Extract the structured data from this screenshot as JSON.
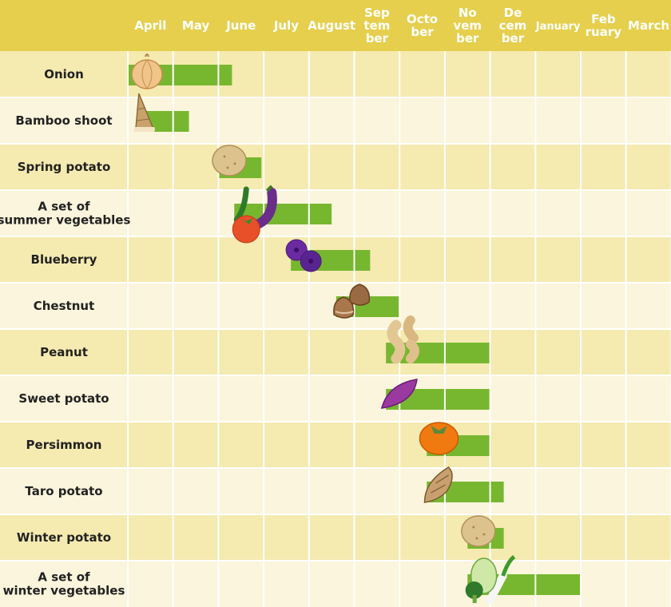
{
  "chart_data": {
    "type": "gantt",
    "title": "",
    "months": [
      "April",
      "May",
      "June",
      "July",
      "August",
      "September",
      "October",
      "November",
      "December",
      "January",
      "February",
      "March"
    ],
    "month_header_lines": [
      [
        "April"
      ],
      [
        "May"
      ],
      [
        "June"
      ],
      [
        "July"
      ],
      [
        "August"
      ],
      [
        "Sep",
        "tem",
        "ber"
      ],
      [
        "Octo",
        "ber"
      ],
      [
        "No",
        "vem",
        "ber"
      ],
      [
        "De",
        "cem",
        "ber"
      ],
      [
        "January"
      ],
      [
        "Feb",
        "ruary"
      ],
      [
        "March"
      ]
    ],
    "rows": [
      {
        "label": [
          "Onion"
        ],
        "start": 0.0,
        "end": 2.3,
        "icon": "onion-icon"
      },
      {
        "label": [
          "Bamboo shoot"
        ],
        "start": 0.35,
        "end": 1.35,
        "icon": "bamboo-shoot-icon"
      },
      {
        "label": [
          "Spring potato"
        ],
        "start": 2.0,
        "end": 2.95,
        "icon": "potato-icon"
      },
      {
        "label": [
          "A set of",
          "summer vegetables"
        ],
        "start": 2.35,
        "end": 4.5,
        "icon": "summer-vegetables-icon"
      },
      {
        "label": [
          "Blueberry"
        ],
        "start": 3.6,
        "end": 5.35,
        "icon": "blueberry-icon"
      },
      {
        "label": [
          "Chestnut"
        ],
        "start": 4.6,
        "end": 6.0,
        "icon": "chestnut-icon"
      },
      {
        "label": [
          "Peanut"
        ],
        "start": 5.7,
        "end": 8.0,
        "icon": "peanut-icon"
      },
      {
        "label": [
          "Sweet potato"
        ],
        "start": 5.7,
        "end": 8.0,
        "icon": "sweet-potato-icon"
      },
      {
        "label": [
          "Persimmon"
        ],
        "start": 6.6,
        "end": 8.0,
        "icon": "persimmon-icon"
      },
      {
        "label": [
          "Taro potato"
        ],
        "start": 6.6,
        "end": 8.3,
        "icon": "taro-potato-icon"
      },
      {
        "label": [
          "Winter potato"
        ],
        "start": 7.5,
        "end": 8.3,
        "icon": "potato-icon"
      },
      {
        "label": [
          "A set of",
          "winter vegetables"
        ],
        "start": 7.5,
        "end": 10.0,
        "icon": "winter-vegetables-icon"
      }
    ],
    "colors": {
      "header_bg": "#e6cf4d",
      "row_dark": "#f5eab0",
      "row_light": "#faf5dc",
      "bar": "#77b72f",
      "grid": "#ffffff"
    }
  }
}
